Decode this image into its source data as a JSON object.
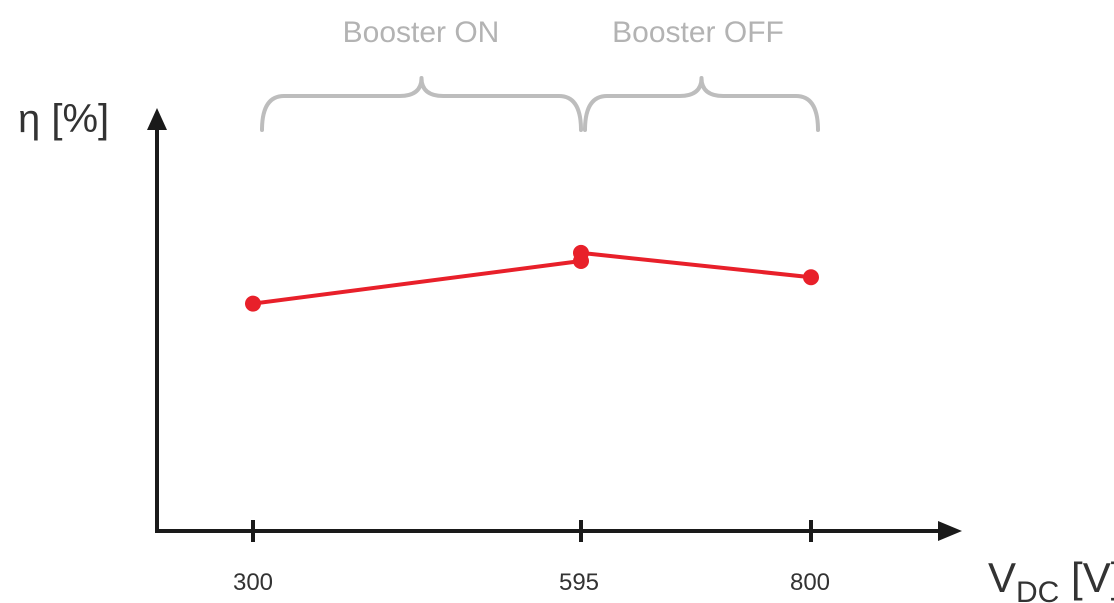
{
  "chart_data": {
    "type": "line",
    "title": "",
    "xlabel_main": "V",
    "xlabel_sub": "DC",
    "xlabel_unit": " [V]",
    "ylabel": "η [%]",
    "x_ticks": [
      "300",
      "595",
      "800"
    ],
    "series": [
      {
        "color": "#e8202a",
        "points": [
          {
            "x": 300,
            "y": 0.56
          },
          {
            "x": 595,
            "y": 0.665
          },
          {
            "x": 595,
            "y": 0.685
          },
          {
            "x": 800,
            "y": 0.625
          }
        ]
      }
    ],
    "annotations": [
      {
        "label": "Booster ON",
        "x_from": 300,
        "x_to": 595
      },
      {
        "label": "Booster OFF",
        "x_from": 595,
        "x_to": 800
      }
    ],
    "colors": {
      "axis": "#1a1a1a",
      "series": "#e8202a",
      "brace": "#bdbdbd",
      "text": "#333333",
      "annotation_text": "#b3b3b3"
    }
  }
}
